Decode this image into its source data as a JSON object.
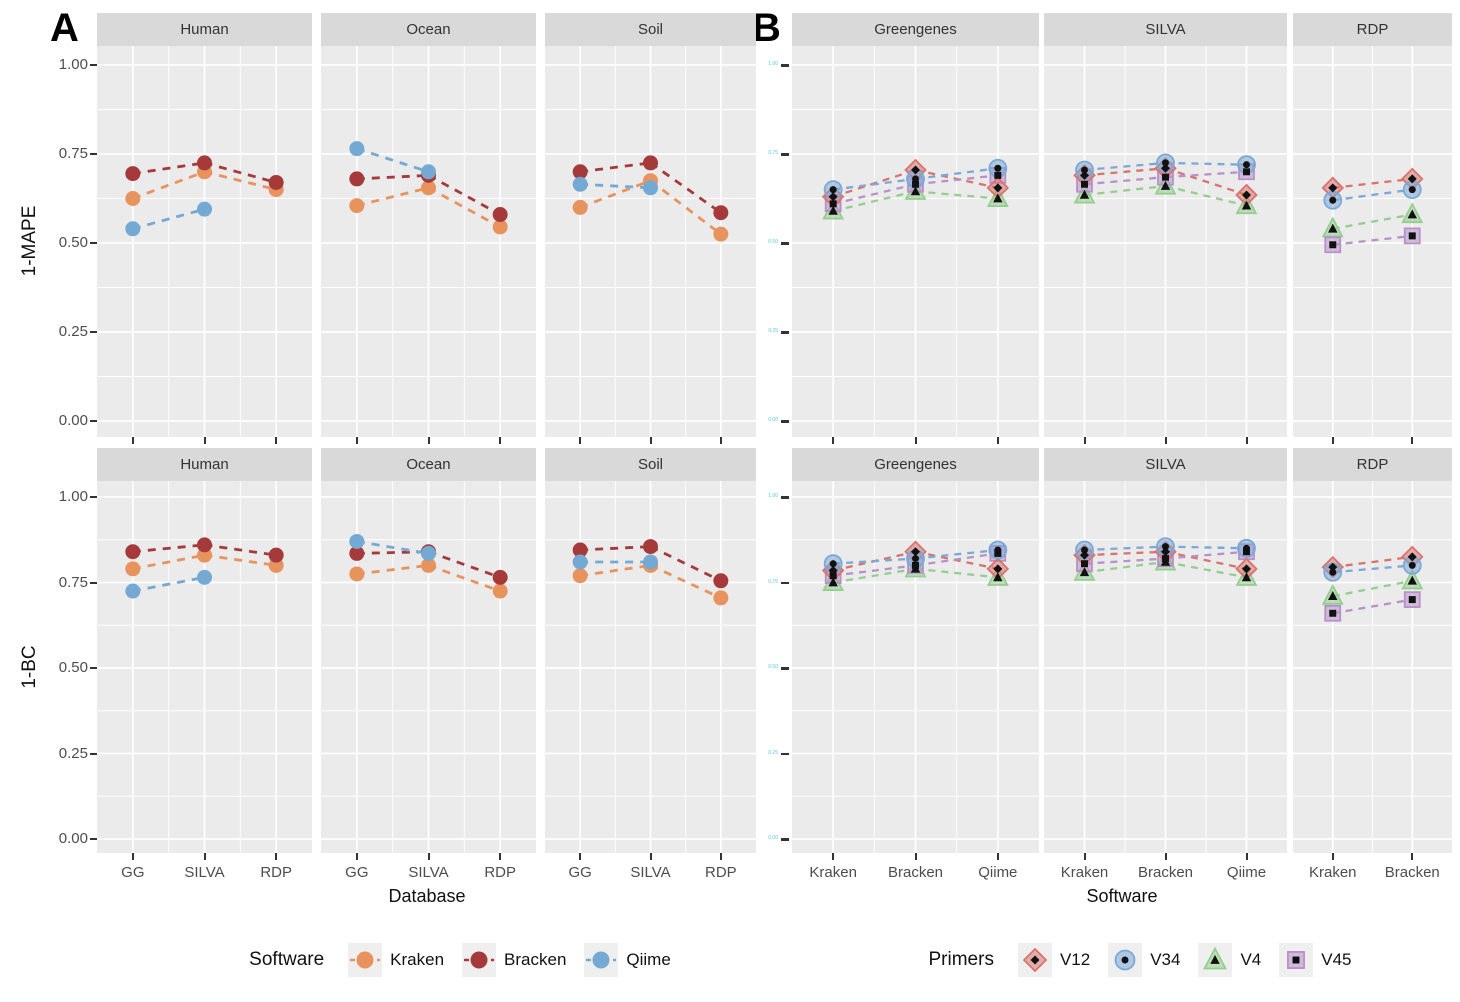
{
  "figure": {
    "panel_a_label": "A",
    "panel_b_label": "B",
    "y_axis_title_row1": "1-MAPE",
    "y_axis_title_row2": "1-BC",
    "x_axis_title_a": "Database",
    "x_axis_title_b": "Software",
    "y_tick_labels": [
      "1.00",
      "0.75",
      "0.50",
      "0.25",
      "0.00"
    ]
  },
  "colors": {
    "panel_bg": "#EBEBEB",
    "strip_bg": "#D9D9D9",
    "gridline": "#FFFFFF",
    "tick": "#333333",
    "tick_label": "#4D4D4D",
    "tiny_tick_label": "#56C8E6",
    "kraken": "#E8935E",
    "bracken": "#A63A3A",
    "qiime": "#74A9D4",
    "v12": "#D9736D",
    "v34": "#7AA8D7",
    "v4": "#94CE8E",
    "v45": "#B791C8"
  },
  "legend_a": {
    "title": "Software",
    "items": [
      {
        "label": "Kraken",
        "color": "#E8935E",
        "shape": "circle"
      },
      {
        "label": "Bracken",
        "color": "#A63A3A",
        "shape": "circle"
      },
      {
        "label": "Qiime",
        "color": "#74A9D4",
        "shape": "circle"
      }
    ]
  },
  "legend_b": {
    "title": "Primers",
    "items": [
      {
        "label": "V12",
        "color": "#D9736D",
        "shape": "diamond"
      },
      {
        "label": "V34",
        "color": "#7AA8D7",
        "shape": "circle"
      },
      {
        "label": "V4",
        "color": "#94CE8E",
        "shape": "triangle"
      },
      {
        "label": "V45",
        "color": "#B791C8",
        "shape": "square"
      }
    ]
  },
  "chart_data": [
    {
      "type": "line",
      "panel": "A",
      "ylabel": "1-MAPE",
      "xlabel": "Database",
      "ylim": [
        0,
        1
      ],
      "y_ticks": [
        1.0,
        0.75,
        0.5,
        0.25,
        0.0
      ],
      "grid": true,
      "facets": [
        {
          "name": "Human",
          "categories": [
            "GG",
            "SILVA",
            "RDP"
          ],
          "series": [
            {
              "name": "Kraken",
              "values": [
                0.625,
                0.7,
                0.65
              ]
            },
            {
              "name": "Bracken",
              "values": [
                0.695,
                0.725,
                0.67
              ]
            },
            {
              "name": "Qiime",
              "values": [
                0.54,
                0.595,
                null
              ]
            }
          ]
        },
        {
          "name": "Ocean",
          "categories": [
            "GG",
            "SILVA",
            "RDP"
          ],
          "series": [
            {
              "name": "Kraken",
              "values": [
                0.605,
                0.655,
                0.545
              ]
            },
            {
              "name": "Bracken",
              "values": [
                0.68,
                0.69,
                0.58
              ]
            },
            {
              "name": "Qiime",
              "values": [
                0.765,
                0.7,
                null
              ]
            }
          ]
        },
        {
          "name": "Soil",
          "categories": [
            "GG",
            "SILVA",
            "RDP"
          ],
          "series": [
            {
              "name": "Kraken",
              "values": [
                0.6,
                0.675,
                0.525
              ]
            },
            {
              "name": "Bracken",
              "values": [
                0.7,
                0.725,
                0.585
              ]
            },
            {
              "name": "Qiime",
              "values": [
                0.665,
                0.655,
                null
              ]
            }
          ]
        }
      ]
    },
    {
      "type": "line",
      "panel": "A",
      "ylabel": "1-BC",
      "xlabel": "Database",
      "ylim": [
        0,
        1
      ],
      "y_ticks": [
        1.0,
        0.75,
        0.5,
        0.25,
        0.0
      ],
      "grid": true,
      "facets": [
        {
          "name": "Human",
          "categories": [
            "GG",
            "SILVA",
            "RDP"
          ],
          "series": [
            {
              "name": "Kraken",
              "values": [
                0.79,
                0.83,
                0.8
              ]
            },
            {
              "name": "Bracken",
              "values": [
                0.84,
                0.86,
                0.83
              ]
            },
            {
              "name": "Qiime",
              "values": [
                0.725,
                0.765,
                null
              ]
            }
          ]
        },
        {
          "name": "Ocean",
          "categories": [
            "GG",
            "SILVA",
            "RDP"
          ],
          "series": [
            {
              "name": "Kraken",
              "values": [
                0.775,
                0.8,
                0.725
              ]
            },
            {
              "name": "Bracken",
              "values": [
                0.835,
                0.84,
                0.765
              ]
            },
            {
              "name": "Qiime",
              "values": [
                0.87,
                0.835,
                null
              ]
            }
          ]
        },
        {
          "name": "Soil",
          "categories": [
            "GG",
            "SILVA",
            "RDP"
          ],
          "series": [
            {
              "name": "Kraken",
              "values": [
                0.77,
                0.8,
                0.705
              ]
            },
            {
              "name": "Bracken",
              "values": [
                0.845,
                0.855,
                0.755
              ]
            },
            {
              "name": "Qiime",
              "values": [
                0.81,
                0.81,
                null
              ]
            }
          ]
        }
      ]
    },
    {
      "type": "line",
      "panel": "B",
      "ylabel": "1-MAPE",
      "xlabel": "Software",
      "ylim": [
        0,
        1
      ],
      "y_ticks": [
        1.0,
        0.75,
        0.5,
        0.25,
        0.0
      ],
      "grid": true,
      "facets": [
        {
          "name": "Greengenes",
          "categories": [
            "Kraken",
            "Bracken",
            "Qiime"
          ],
          "series": [
            {
              "name": "V12",
              "values": [
                0.63,
                0.705,
                0.655
              ]
            },
            {
              "name": "V34",
              "values": [
                0.65,
                0.68,
                0.71
              ]
            },
            {
              "name": "V4",
              "values": [
                0.59,
                0.645,
                0.625
              ]
            },
            {
              "name": "V45",
              "values": [
                0.61,
                0.665,
                0.69
              ]
            }
          ]
        },
        {
          "name": "SILVA",
          "categories": [
            "Kraken",
            "Bracken",
            "Qiime"
          ],
          "series": [
            {
              "name": "V12",
              "values": [
                0.69,
                0.71,
                0.635
              ]
            },
            {
              "name": "V34",
              "values": [
                0.705,
                0.725,
                0.72
              ]
            },
            {
              "name": "V4",
              "values": [
                0.635,
                0.66,
                0.605
              ]
            },
            {
              "name": "V45",
              "values": [
                0.665,
                0.685,
                0.7
              ]
            }
          ]
        },
        {
          "name": "RDP",
          "categories": [
            "Kraken",
            "Bracken"
          ],
          "series": [
            {
              "name": "V12",
              "values": [
                0.655,
                0.68
              ]
            },
            {
              "name": "V34",
              "values": [
                0.62,
                0.65
              ]
            },
            {
              "name": "V4",
              "values": [
                0.54,
                0.58
              ]
            },
            {
              "name": "V45",
              "values": [
                0.495,
                0.52
              ]
            }
          ]
        }
      ]
    },
    {
      "type": "line",
      "panel": "B",
      "ylabel": "1-BC",
      "xlabel": "Software",
      "ylim": [
        0,
        1
      ],
      "y_ticks": [
        1.0,
        0.75,
        0.5,
        0.25,
        0.0
      ],
      "grid": true,
      "facets": [
        {
          "name": "Greengenes",
          "categories": [
            "Kraken",
            "Bracken",
            "Qiime"
          ],
          "series": [
            {
              "name": "V12",
              "values": [
                0.785,
                0.84,
                0.79
              ]
            },
            {
              "name": "V34",
              "values": [
                0.805,
                0.82,
                0.845
              ]
            },
            {
              "name": "V4",
              "values": [
                0.75,
                0.79,
                0.765
              ]
            },
            {
              "name": "V45",
              "values": [
                0.77,
                0.8,
                0.835
              ]
            }
          ]
        },
        {
          "name": "SILVA",
          "categories": [
            "Kraken",
            "Bracken",
            "Qiime"
          ],
          "series": [
            {
              "name": "V12",
              "values": [
                0.83,
                0.84,
                0.79
              ]
            },
            {
              "name": "V34",
              "values": [
                0.845,
                0.855,
                0.85
              ]
            },
            {
              "name": "V4",
              "values": [
                0.78,
                0.81,
                0.765
              ]
            },
            {
              "name": "V45",
              "values": [
                0.805,
                0.82,
                0.84
              ]
            }
          ]
        },
        {
          "name": "RDP",
          "categories": [
            "Kraken",
            "Bracken"
          ],
          "series": [
            {
              "name": "V12",
              "values": [
                0.795,
                0.825
              ]
            },
            {
              "name": "V34",
              "values": [
                0.78,
                0.8
              ]
            },
            {
              "name": "V4",
              "values": [
                0.71,
                0.755
              ]
            },
            {
              "name": "V45",
              "values": [
                0.66,
                0.7
              ]
            }
          ]
        }
      ]
    }
  ]
}
